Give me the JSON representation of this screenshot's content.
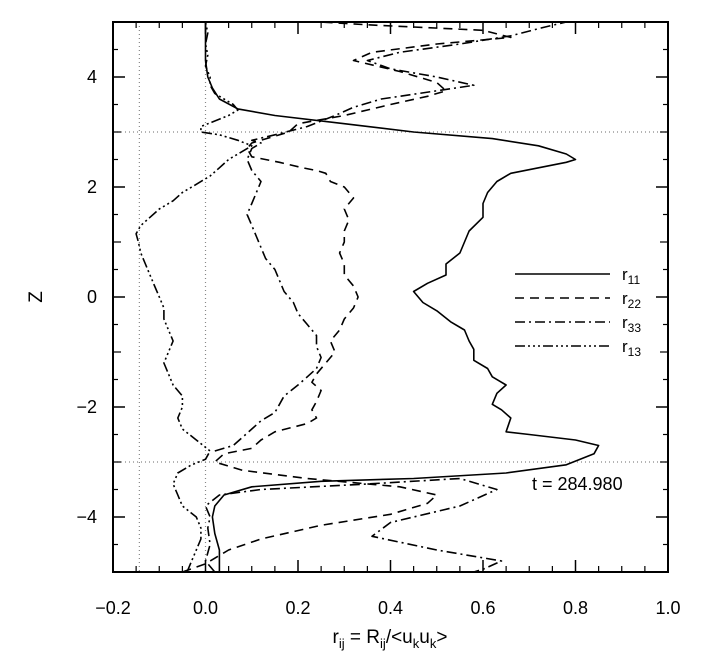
{
  "chart_data": {
    "type": "line",
    "title": "",
    "xlabel": "r_ij = R_ij/<u_k u_k>",
    "ylabel": "Z",
    "xlim": [
      -0.2,
      1.0
    ],
    "ylim": [
      -5,
      5
    ],
    "xticks": [
      -0.2,
      0.0,
      0.2,
      0.4,
      0.6,
      0.8,
      1.0
    ],
    "xtick_labels": [
      "−0.2",
      "0.0",
      "0.2",
      "0.4",
      "0.6",
      "0.8",
      "1.0"
    ],
    "yticks": [
      -4,
      -2,
      0,
      2,
      4
    ],
    "ytick_labels": [
      "−4",
      "−2",
      "0",
      "2",
      "4"
    ],
    "reference_lines": {
      "vertical": [
        -0.143,
        0.0
      ],
      "horizontal": [
        -3.0,
        3.0
      ]
    },
    "legend_position": "right",
    "annotation": "t  =  284.980",
    "series": [
      {
        "name": "r11",
        "style": "solid",
        "points": [
          [
            0.03,
            -5.0
          ],
          [
            0.03,
            -4.6
          ],
          [
            0.02,
            -4.3
          ],
          [
            0.015,
            -4.0
          ],
          [
            0.02,
            -3.8
          ],
          [
            0.04,
            -3.6
          ],
          [
            0.1,
            -3.45
          ],
          [
            0.25,
            -3.35
          ],
          [
            0.45,
            -3.3
          ],
          [
            0.65,
            -3.2
          ],
          [
            0.78,
            -3.05
          ],
          [
            0.84,
            -2.85
          ],
          [
            0.85,
            -2.7
          ],
          [
            0.8,
            -2.6
          ],
          [
            0.7,
            -2.5
          ],
          [
            0.65,
            -2.45
          ],
          [
            0.66,
            -2.2
          ],
          [
            0.64,
            -2.05
          ],
          [
            0.62,
            -1.95
          ],
          [
            0.63,
            -1.75
          ],
          [
            0.65,
            -1.6
          ],
          [
            0.62,
            -1.45
          ],
          [
            0.61,
            -1.3
          ],
          [
            0.58,
            -1.15
          ],
          [
            0.58,
            -0.95
          ],
          [
            0.57,
            -0.8
          ],
          [
            0.56,
            -0.6
          ],
          [
            0.53,
            -0.45
          ],
          [
            0.5,
            -0.25
          ],
          [
            0.47,
            -0.1
          ],
          [
            0.45,
            0.1
          ],
          [
            0.48,
            0.25
          ],
          [
            0.52,
            0.4
          ],
          [
            0.52,
            0.6
          ],
          [
            0.55,
            0.8
          ],
          [
            0.56,
            1.0
          ],
          [
            0.57,
            1.2
          ],
          [
            0.6,
            1.45
          ],
          [
            0.6,
            1.7
          ],
          [
            0.61,
            1.9
          ],
          [
            0.63,
            2.1
          ],
          [
            0.66,
            2.25
          ],
          [
            0.72,
            2.35
          ],
          [
            0.78,
            2.45
          ],
          [
            0.8,
            2.5
          ],
          [
            0.78,
            2.6
          ],
          [
            0.72,
            2.75
          ],
          [
            0.62,
            2.88
          ],
          [
            0.45,
            3.0
          ],
          [
            0.3,
            3.15
          ],
          [
            0.15,
            3.3
          ],
          [
            0.07,
            3.42
          ],
          [
            0.03,
            3.6
          ],
          [
            0.015,
            3.8
          ],
          [
            0.005,
            4.0
          ],
          [
            0.0,
            4.3
          ],
          [
            0.0,
            4.7
          ],
          [
            0.0,
            5.0
          ]
        ]
      },
      {
        "name": "r22",
        "style": "dashed",
        "points": [
          [
            -0.05,
            -5.0
          ],
          [
            0.0,
            -4.85
          ],
          [
            0.05,
            -4.6
          ],
          [
            0.12,
            -4.4
          ],
          [
            0.25,
            -4.15
          ],
          [
            0.4,
            -3.95
          ],
          [
            0.48,
            -3.75
          ],
          [
            0.5,
            -3.6
          ],
          [
            0.42,
            -3.45
          ],
          [
            0.22,
            -3.3
          ],
          [
            0.08,
            -3.15
          ],
          [
            0.02,
            -3.0
          ],
          [
            0.04,
            -2.85
          ],
          [
            0.1,
            -2.75
          ],
          [
            0.12,
            -2.6
          ],
          [
            0.15,
            -2.45
          ],
          [
            0.22,
            -2.3
          ],
          [
            0.24,
            -2.2
          ],
          [
            0.23,
            -2.05
          ],
          [
            0.24,
            -1.9
          ],
          [
            0.25,
            -1.7
          ],
          [
            0.23,
            -1.55
          ],
          [
            0.24,
            -1.4
          ],
          [
            0.26,
            -1.2
          ],
          [
            0.28,
            -1.0
          ],
          [
            0.27,
            -0.8
          ],
          [
            0.29,
            -0.6
          ],
          [
            0.3,
            -0.4
          ],
          [
            0.32,
            -0.2
          ],
          [
            0.33,
            0.0
          ],
          [
            0.32,
            0.2
          ],
          [
            0.3,
            0.4
          ],
          [
            0.3,
            0.6
          ],
          [
            0.29,
            0.8
          ],
          [
            0.3,
            1.0
          ],
          [
            0.3,
            1.2
          ],
          [
            0.31,
            1.4
          ],
          [
            0.3,
            1.6
          ],
          [
            0.32,
            1.8
          ],
          [
            0.3,
            2.0
          ],
          [
            0.27,
            2.1
          ],
          [
            0.26,
            2.25
          ],
          [
            0.24,
            2.3
          ],
          [
            0.21,
            2.35
          ],
          [
            0.16,
            2.45
          ],
          [
            0.1,
            2.55
          ],
          [
            0.09,
            2.7
          ],
          [
            0.1,
            2.8
          ],
          [
            0.14,
            2.9
          ],
          [
            0.18,
            3.0
          ],
          [
            0.2,
            3.15
          ],
          [
            0.3,
            3.3
          ],
          [
            0.4,
            3.5
          ],
          [
            0.48,
            3.65
          ],
          [
            0.52,
            3.75
          ],
          [
            0.5,
            3.9
          ],
          [
            0.42,
            4.1
          ],
          [
            0.32,
            4.3
          ],
          [
            0.36,
            4.45
          ],
          [
            0.5,
            4.6
          ],
          [
            0.66,
            4.72
          ],
          [
            0.6,
            4.85
          ],
          [
            0.35,
            4.95
          ],
          [
            0.25,
            5.0
          ]
        ]
      },
      {
        "name": "r33",
        "style": "dashdot",
        "points": [
          [
            0.02,
            -5.0
          ],
          [
            0.0,
            -4.8
          ],
          [
            0.01,
            -4.5
          ],
          [
            0.005,
            -4.2
          ],
          [
            0.01,
            -4.0
          ],
          [
            0.0,
            -3.8
          ],
          [
            0.03,
            -3.6
          ],
          [
            0.12,
            -3.5
          ],
          [
            0.35,
            -3.4
          ],
          [
            0.55,
            -3.3
          ],
          [
            0.63,
            -3.5
          ],
          [
            0.55,
            -3.8
          ],
          [
            0.4,
            -4.1
          ],
          [
            0.36,
            -4.35
          ],
          [
            0.5,
            -4.6
          ],
          [
            0.64,
            -4.8
          ],
          [
            0.6,
            -4.95
          ],
          [
            0.58,
            -5.0
          ]
        ],
        "points_upper": [
          [
            0.02,
            -2.8
          ],
          [
            0.06,
            -2.7
          ],
          [
            0.08,
            -2.55
          ],
          [
            0.1,
            -2.4
          ],
          [
            0.12,
            -2.25
          ],
          [
            0.15,
            -2.1
          ],
          [
            0.16,
            -1.95
          ],
          [
            0.17,
            -1.8
          ],
          [
            0.2,
            -1.6
          ],
          [
            0.22,
            -1.45
          ],
          [
            0.24,
            -1.3
          ],
          [
            0.25,
            -1.1
          ],
          [
            0.24,
            -0.9
          ],
          [
            0.24,
            -0.7
          ],
          [
            0.22,
            -0.5
          ],
          [
            0.2,
            -0.3
          ],
          [
            0.19,
            -0.1
          ],
          [
            0.17,
            0.1
          ],
          [
            0.16,
            0.3
          ],
          [
            0.15,
            0.5
          ],
          [
            0.13,
            0.7
          ],
          [
            0.12,
            0.9
          ],
          [
            0.11,
            1.1
          ],
          [
            0.1,
            1.3
          ],
          [
            0.09,
            1.5
          ],
          [
            0.1,
            1.7
          ],
          [
            0.11,
            1.9
          ],
          [
            0.12,
            2.1
          ],
          [
            0.1,
            2.3
          ],
          [
            0.09,
            2.5
          ],
          [
            0.1,
            2.7
          ],
          [
            0.12,
            2.8
          ],
          [
            0.1,
            2.85
          ],
          [
            0.15,
            2.95
          ],
          [
            0.22,
            3.1
          ],
          [
            0.28,
            3.3
          ],
          [
            0.32,
            3.45
          ],
          [
            0.38,
            3.6
          ],
          [
            0.5,
            3.75
          ],
          [
            0.58,
            3.85
          ],
          [
            0.5,
            4.0
          ],
          [
            0.4,
            4.15
          ],
          [
            0.35,
            4.3
          ],
          [
            0.42,
            4.45
          ],
          [
            0.55,
            4.6
          ],
          [
            0.66,
            4.75
          ],
          [
            0.73,
            4.9
          ],
          [
            0.78,
            5.0
          ]
        ]
      },
      {
        "name": "r13",
        "style": "dashdotdotdot",
        "points": [
          [
            -0.04,
            -5.0
          ],
          [
            -0.03,
            -4.8
          ],
          [
            -0.02,
            -4.6
          ],
          [
            -0.01,
            -4.4
          ],
          [
            -0.01,
            -4.2
          ],
          [
            -0.02,
            -4.0
          ],
          [
            -0.05,
            -3.8
          ],
          [
            -0.06,
            -3.6
          ],
          [
            -0.07,
            -3.4
          ],
          [
            -0.06,
            -3.2
          ],
          [
            -0.03,
            -3.05
          ],
          [
            0.0,
            -2.95
          ],
          [
            0.01,
            -2.8
          ],
          [
            -0.02,
            -2.6
          ],
          [
            -0.05,
            -2.4
          ],
          [
            -0.06,
            -2.2
          ],
          [
            -0.05,
            -2.0
          ],
          [
            -0.05,
            -1.8
          ],
          [
            -0.07,
            -1.6
          ],
          [
            -0.08,
            -1.4
          ],
          [
            -0.09,
            -1.2
          ],
          [
            -0.08,
            -1.0
          ],
          [
            -0.07,
            -0.8
          ],
          [
            -0.08,
            -0.6
          ],
          [
            -0.09,
            -0.4
          ],
          [
            -0.09,
            -0.2
          ],
          [
            -0.1,
            0.0
          ],
          [
            -0.11,
            0.2
          ],
          [
            -0.12,
            0.4
          ],
          [
            -0.13,
            0.6
          ],
          [
            -0.14,
            0.8
          ],
          [
            -0.145,
            1.0
          ],
          [
            -0.15,
            1.15
          ],
          [
            -0.14,
            1.3
          ],
          [
            -0.12,
            1.45
          ],
          [
            -0.1,
            1.6
          ],
          [
            -0.07,
            1.75
          ],
          [
            -0.05,
            1.9
          ],
          [
            -0.02,
            2.05
          ],
          [
            0.01,
            2.2
          ],
          [
            0.03,
            2.35
          ],
          [
            0.05,
            2.5
          ],
          [
            0.08,
            2.65
          ],
          [
            0.1,
            2.75
          ],
          [
            0.07,
            2.85
          ],
          [
            0.03,
            2.95
          ],
          [
            -0.01,
            3.0
          ],
          [
            -0.01,
            3.1
          ],
          [
            0.02,
            3.2
          ],
          [
            0.05,
            3.3
          ],
          [
            0.07,
            3.4
          ],
          [
            0.06,
            3.5
          ],
          [
            0.04,
            3.6
          ],
          [
            0.02,
            3.7
          ],
          [
            0.01,
            3.85
          ],
          [
            0.01,
            4.0
          ],
          [
            0.0,
            4.2
          ],
          [
            0.005,
            4.4
          ],
          [
            0.0,
            4.6
          ],
          [
            0.005,
            4.8
          ],
          [
            0.0,
            5.0
          ]
        ]
      }
    ]
  },
  "legend": [
    {
      "label": "r",
      "sub": "11",
      "dash": "none"
    },
    {
      "label": "r",
      "sub": "22",
      "dash": "9,6"
    },
    {
      "label": "r",
      "sub": "33",
      "dash": "10,4,2,4"
    },
    {
      "label": "r",
      "sub": "13",
      "dash": "10,3,2,3,2,3,2,3"
    }
  ],
  "xlabel_parts": {
    "r": "r",
    "ij_sub": "ij",
    "eq": " = ",
    "R": "R",
    "ij_sub2": "ij",
    "slash": "/<u",
    "k_sub": "k",
    "u2": "u",
    "k_sub2": "k",
    "close": ">"
  }
}
